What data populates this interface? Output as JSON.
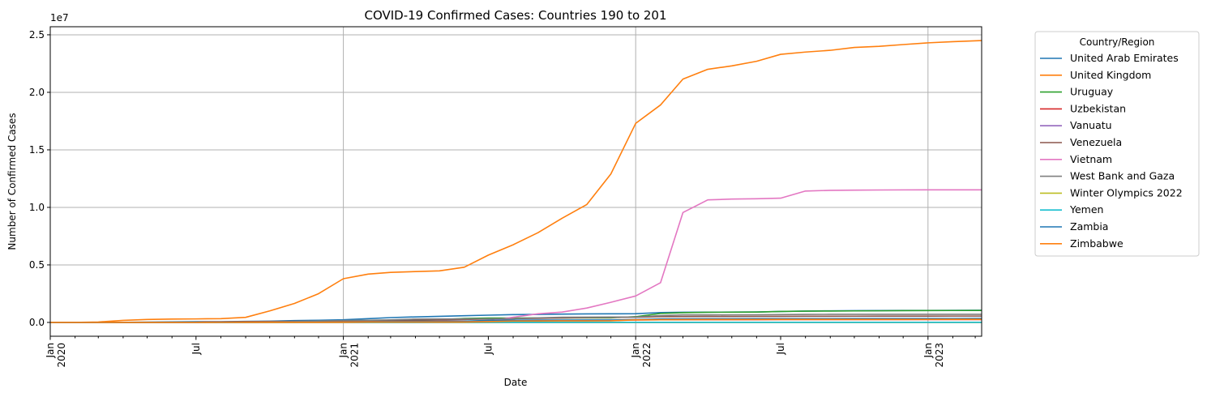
{
  "chart_data": {
    "type": "line",
    "title": "COVID-19 Confirmed Cases: Countries 190 to 201",
    "xlabel": "Date",
    "ylabel": "Number of Confirmed Cases",
    "y_offset_label": "1e7",
    "ylim": [
      -1200000,
      25700000
    ],
    "xlim": [
      "2020-01-01",
      "2023-03-09"
    ],
    "y_ticks": [
      {
        "value": 0,
        "label": "0.0"
      },
      {
        "value": 5000000,
        "label": "0.5"
      },
      {
        "value": 10000000,
        "label": "1.0"
      },
      {
        "value": 15000000,
        "label": "1.5"
      },
      {
        "value": 20000000,
        "label": "2.0"
      },
      {
        "value": 25000000,
        "label": "2.5"
      }
    ],
    "x_major_ticks": [
      {
        "date": "2020-01-01",
        "label": "Jan",
        "year": "2020"
      },
      {
        "date": "2020-07-01",
        "label": "Jul",
        "year": ""
      },
      {
        "date": "2021-01-01",
        "label": "Jan",
        "year": "2021"
      },
      {
        "date": "2021-07-01",
        "label": "Jul",
        "year": ""
      },
      {
        "date": "2022-01-01",
        "label": "Jan",
        "year": "2022"
      },
      {
        "date": "2022-07-01",
        "label": "Jul",
        "year": ""
      },
      {
        "date": "2023-01-01",
        "label": "Jan",
        "year": "2023"
      }
    ],
    "grid_dates": [
      "2021-01-01",
      "2022-01-01",
      "2023-01-01"
    ],
    "grid": true,
    "legend": {
      "title": "Country/Region",
      "placement": "outside-right"
    },
    "x": [
      "2020-01-01",
      "2020-02-01",
      "2020-03-01",
      "2020-04-01",
      "2020-05-01",
      "2020-06-01",
      "2020-07-01",
      "2020-08-01",
      "2020-09-01",
      "2020-10-01",
      "2020-11-01",
      "2020-12-01",
      "2021-01-01",
      "2021-02-01",
      "2021-03-01",
      "2021-04-01",
      "2021-05-01",
      "2021-06-01",
      "2021-07-01",
      "2021-08-01",
      "2021-09-01",
      "2021-10-01",
      "2021-11-01",
      "2021-12-01",
      "2022-01-01",
      "2022-02-01",
      "2022-03-01",
      "2022-04-01",
      "2022-05-01",
      "2022-06-01",
      "2022-07-01",
      "2022-08-01",
      "2022-09-01",
      "2022-10-01",
      "2022-11-01",
      "2022-12-01",
      "2023-01-01",
      "2023-02-01",
      "2023-03-09"
    ],
    "series": [
      {
        "name": "United Arab Emirates",
        "color": "#1f77b4",
        "values": [
          0,
          0,
          0,
          12000,
          33000,
          48000,
          60000,
          68000,
          90000,
          110000,
          160000,
          190000,
          230000,
          330000,
          420000,
          480000,
          530000,
          580000,
          630000,
          680000,
          700000,
          720000,
          740000,
          750000,
          760000,
          860000,
          880000,
          890000,
          900000,
          910000,
          950000,
          990000,
          1010000,
          1020000,
          1030000,
          1040000,
          1045000,
          1050000,
          1060000
        ]
      },
      {
        "name": "United Kingdom",
        "color": "#ff7f0e",
        "values": [
          0,
          20,
          40000,
          180000,
          260000,
          290000,
          305000,
          330000,
          440000,
          1000000,
          1650000,
          2500000,
          3800000,
          4200000,
          4350000,
          4420000,
          4480000,
          4800000,
          5850000,
          6750000,
          7800000,
          9050000,
          10250000,
          12900000,
          17300000,
          18900000,
          21150000,
          22000000,
          22300000,
          22700000,
          23300000,
          23500000,
          23650000,
          23900000,
          24000000,
          24150000,
          24300000,
          24400000,
          24500000
        ]
      },
      {
        "name": "Uruguay",
        "color": "#2ca02c",
        "values": [
          0,
          0,
          300,
          600,
          800,
          900,
          1000,
          1500,
          2000,
          2800,
          4500,
          9000,
          30000,
          48000,
          90000,
          180000,
          240000,
          350000,
          380000,
          385000,
          387000,
          390000,
          395000,
          400000,
          500000,
          780000,
          850000,
          880000,
          890000,
          900000,
          950000,
          980000,
          990000,
          1000000,
          1010000,
          1020000,
          1030000,
          1035000,
          1040000
        ]
      },
      {
        "name": "Uzbekistan",
        "color": "#d62728",
        "values": [
          0,
          0,
          100,
          2000,
          3000,
          6000,
          15000,
          38000,
          50000,
          62000,
          70000,
          76000,
          78000,
          80000,
          83000,
          90000,
          97000,
          110000,
          130000,
          150000,
          165000,
          180000,
          190000,
          200000,
          210000,
          230000,
          238000,
          238000,
          238000,
          240000,
          245000,
          245000,
          247000,
          248000,
          249000,
          250000,
          251000,
          251000,
          251000
        ]
      },
      {
        "name": "Vanuatu",
        "color": "#9467bd",
        "values": [
          0,
          0,
          0,
          0,
          0,
          0,
          0,
          0,
          0,
          0,
          0,
          1,
          1,
          1,
          3,
          3,
          3,
          4,
          4,
          4,
          4,
          6,
          6,
          7,
          7,
          200,
          2000,
          7000,
          10000,
          11000,
          11500,
          11700,
          11800,
          11900,
          12000,
          12000,
          12000,
          12000,
          12000
        ]
      },
      {
        "name": "Venezuela",
        "color": "#8c564b",
        "values": [
          0,
          0,
          100,
          300,
          1500,
          5000,
          15000,
          50000,
          75000,
          90000,
          100000,
          110000,
          115000,
          130000,
          145000,
          190000,
          220000,
          255000,
          290000,
          320000,
          355000,
          390000,
          420000,
          440000,
          450000,
          500000,
          515000,
          520000,
          522000,
          525000,
          530000,
          535000,
          540000,
          543000,
          545000,
          548000,
          550000,
          552000,
          552000
        ]
      },
      {
        "name": "Vietnam",
        "color": "#e377c2",
        "values": [
          0,
          16,
          200,
          270,
          330,
          350,
          370,
          1000,
          1050,
          1100,
          1300,
          1400,
          1500,
          2300,
          2500,
          2800,
          4500,
          17000,
          130000,
          450000,
          750000,
          900000,
          1250000,
          1750000,
          2300000,
          3450000,
          9550000,
          10650000,
          10720000,
          10750000,
          10800000,
          11420000,
          11480000,
          11500000,
          11510000,
          11520000,
          11525000,
          11525000,
          11526000
        ]
      },
      {
        "name": "West Bank and Gaza",
        "color": "#7f7f7f",
        "values": [
          0,
          0,
          100,
          300,
          450,
          900,
          3000,
          12000,
          32000,
          48000,
          70000,
          125000,
          160000,
          185000,
          225000,
          290000,
          305000,
          310000,
          315000,
          320000,
          400000,
          450000,
          460000,
          465000,
          470000,
          590000,
          650000,
          655000,
          658000,
          660000,
          680000,
          700000,
          703000,
          703000,
          703000,
          703000,
          703000,
          703000,
          703000
        ]
      },
      {
        "name": "Winter Olympics 2022",
        "color": "#bcbd22",
        "values": [
          0,
          0,
          0,
          0,
          0,
          0,
          0,
          0,
          0,
          0,
          0,
          0,
          0,
          0,
          0,
          0,
          0,
          0,
          0,
          0,
          0,
          0,
          0,
          0,
          0,
          300,
          535,
          535,
          535,
          535,
          535,
          535,
          535,
          535,
          535,
          535,
          535,
          535,
          535
        ]
      },
      {
        "name": "Yemen",
        "color": "#17becf",
        "values": [
          0,
          0,
          0,
          1,
          300,
          900,
          1400,
          1700,
          1950,
          2000,
          2050,
          2100,
          2100,
          2200,
          2600,
          4500,
          6500,
          6800,
          6900,
          7300,
          8500,
          9500,
          9900,
          10000,
          10200,
          11000,
          11700,
          11800,
          11800,
          11800,
          11800,
          11900,
          11900,
          11900,
          11900,
          11900,
          11900,
          11900,
          11900
        ]
      },
      {
        "name": "Zambia",
        "color": "#1f77b4",
        "values": [
          0,
          0,
          30,
          90,
          900,
          1300,
          5000,
          8500,
          13000,
          15000,
          16500,
          18000,
          20000,
          55000,
          80000,
          89000,
          92000,
          110000,
          180000,
          200000,
          207000,
          209000,
          210000,
          211000,
          253000,
          305000,
          314000,
          317000,
          320000,
          325000,
          327000,
          330000,
          332000,
          333000,
          333500,
          334000,
          335000,
          340000,
          343000
        ]
      },
      {
        "name": "Zimbabwe",
        "color": "#ff7f0e",
        "values": [
          0,
          0,
          10,
          40,
          150,
          500,
          3000,
          6500,
          7800,
          8300,
          9500,
          13000,
          20000,
          35000,
          36500,
          38000,
          38500,
          40000,
          70000,
          120000,
          125000,
          130000,
          133000,
          140000,
          220000,
          230000,
          240000,
          245000,
          248000,
          253000,
          255000,
          256000,
          257000,
          258000,
          259000,
          260000,
          261000,
          263000,
          264000
        ]
      }
    ]
  }
}
